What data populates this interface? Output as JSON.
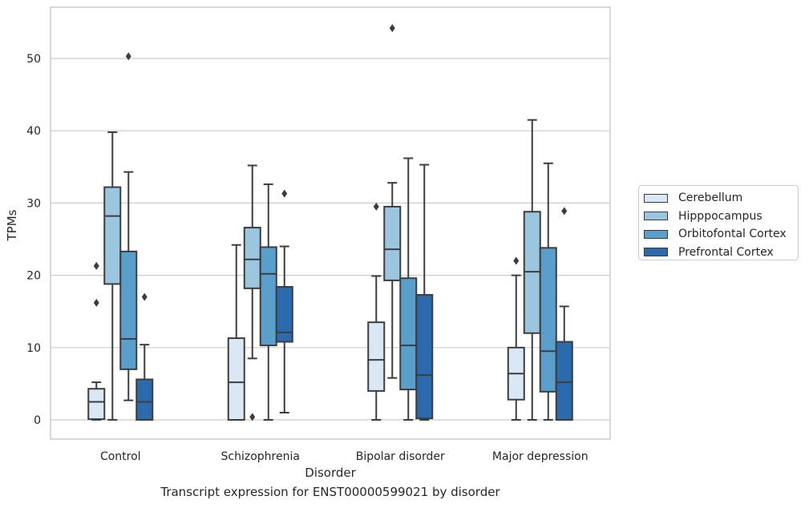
{
  "caption": "Transcript expression for ENST00000599021 by disorder",
  "chart_data": {
    "type": "box",
    "title": "",
    "xlabel": "Disorder",
    "ylabel": "TPMs",
    "ylim": [
      -2.5,
      57
    ],
    "yticks": [
      0,
      10,
      20,
      30,
      40,
      50
    ],
    "grid": "horizontal",
    "legend_position": "right",
    "categories": [
      "Control",
      "Schizophrenia",
      "Bipolar disorder",
      "Major depression"
    ],
    "series": [
      {
        "name": "Cerebellum",
        "color": "#dae8f6",
        "boxes": [
          {
            "whislo": 0.0,
            "q1": 0.1,
            "med": 2.5,
            "q3": 4.3,
            "whishi": 5.2,
            "fliers": [
              16.2,
              21.3
            ]
          },
          {
            "whislo": 0.0,
            "q1": 0.0,
            "med": 5.2,
            "q3": 11.3,
            "whishi": 24.2,
            "fliers": []
          },
          {
            "whislo": 0.0,
            "q1": 4.0,
            "med": 8.3,
            "q3": 13.5,
            "whishi": 19.9,
            "fliers": [
              29.5
            ]
          },
          {
            "whislo": 0.0,
            "q1": 2.8,
            "med": 6.4,
            "q3": 10.0,
            "whishi": 20.0,
            "fliers": [
              22.0
            ]
          }
        ]
      },
      {
        "name": "Hipppocampus",
        "color": "#9cc6df",
        "boxes": [
          {
            "whislo": 0.0,
            "q1": 18.8,
            "med": 28.2,
            "q3": 32.2,
            "whishi": 39.8,
            "fliers": []
          },
          {
            "whislo": 8.5,
            "q1": 18.2,
            "med": 22.2,
            "q3": 26.6,
            "whishi": 35.2,
            "fliers": [
              0.4
            ]
          },
          {
            "whislo": 5.8,
            "q1": 19.3,
            "med": 23.6,
            "q3": 29.5,
            "whishi": 32.8,
            "fliers": [
              54.2
            ]
          },
          {
            "whislo": 0.0,
            "q1": 12.0,
            "med": 20.5,
            "q3": 28.8,
            "whishi": 41.5,
            "fliers": []
          }
        ]
      },
      {
        "name": "Orbitofontal Cortex",
        "color": "#5a9ecb",
        "boxes": [
          {
            "whislo": 2.7,
            "q1": 7.0,
            "med": 11.2,
            "q3": 23.3,
            "whishi": 34.3,
            "fliers": [
              50.3
            ]
          },
          {
            "whislo": 0.0,
            "q1": 10.3,
            "med": 20.2,
            "q3": 23.9,
            "whishi": 32.6,
            "fliers": []
          },
          {
            "whislo": 0.0,
            "q1": 4.2,
            "med": 10.3,
            "q3": 19.6,
            "whishi": 36.2,
            "fliers": []
          },
          {
            "whislo": 0.0,
            "q1": 3.9,
            "med": 9.5,
            "q3": 23.8,
            "whishi": 35.5,
            "fliers": []
          }
        ]
      },
      {
        "name": "Prefrontal Cortex",
        "color": "#2a6aad",
        "boxes": [
          {
            "whislo": 0.0,
            "q1": 0.0,
            "med": 2.5,
            "q3": 5.6,
            "whishi": 10.4,
            "fliers": [
              17.0
            ]
          },
          {
            "whislo": 1.0,
            "q1": 10.8,
            "med": 12.1,
            "q3": 18.4,
            "whishi": 24.0,
            "fliers": [
              31.3
            ]
          },
          {
            "whislo": 0.0,
            "q1": 0.2,
            "med": 6.2,
            "q3": 17.3,
            "whishi": 35.3,
            "fliers": []
          },
          {
            "whislo": 0.0,
            "q1": 0.0,
            "med": 5.2,
            "q3": 10.8,
            "whishi": 15.7,
            "fliers": [
              28.9
            ]
          }
        ]
      }
    ]
  }
}
